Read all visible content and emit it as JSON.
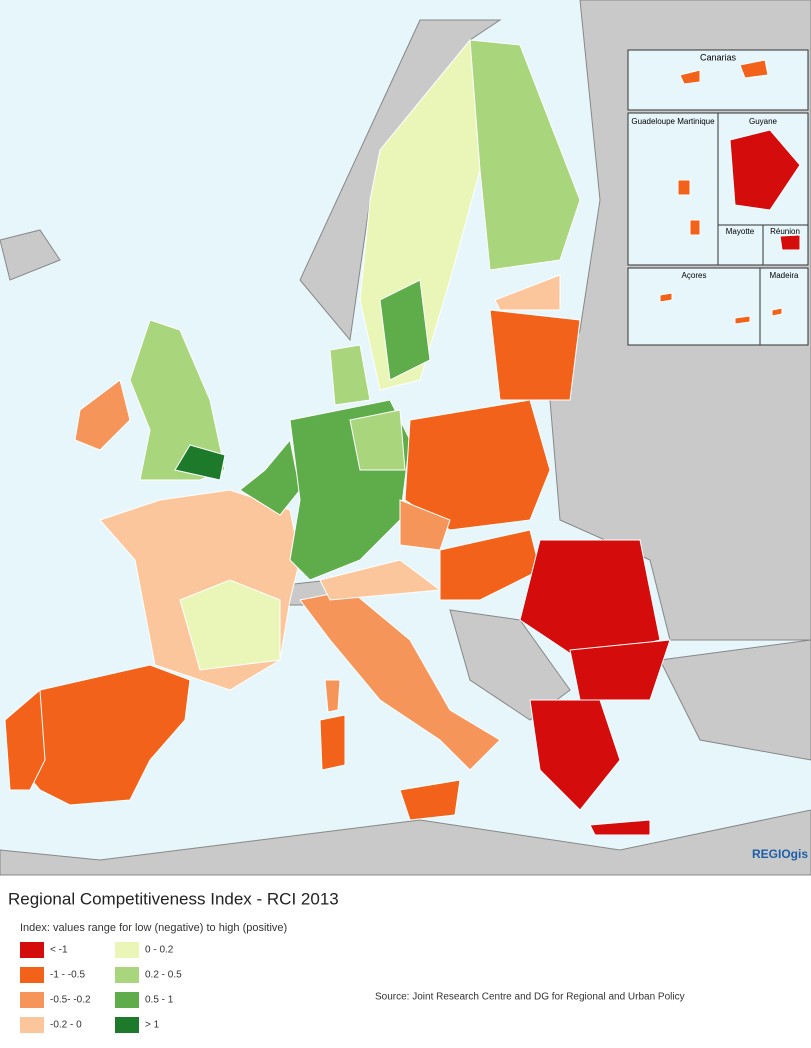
{
  "map": {
    "title": "Regional Competitiveness Index - RCI 2013",
    "subtitle": "Index: values range for low (negative) to high (positive)",
    "legend": [
      {
        "label": "< -1",
        "color": "#d40c0c"
      },
      {
        "label": "-1 - -0.5",
        "color": "#f2621a"
      },
      {
        "label": "-0.5- -0.2",
        "color": "#f6955a"
      },
      {
        "label": "-0.2 - 0",
        "color": "#fbc69b"
      },
      {
        "label": "0 - 0.2",
        "color": "#e9f6b8"
      },
      {
        "label": "0.2 - 0.5",
        "color": "#a9d57c"
      },
      {
        "label": "0.5 - 1",
        "color": "#5fad4a"
      },
      {
        "label": "> 1",
        "color": "#1d7a2b"
      }
    ],
    "source": "Source: Joint Research Centre and DG for Regional and Urban Policy",
    "logo": "REGIOgis",
    "insets": [
      "Canarias",
      "Guadeloupe Martinique",
      "Guyane",
      "Mayotte",
      "Réunion",
      "Açores",
      "Madeira"
    ]
  }
}
